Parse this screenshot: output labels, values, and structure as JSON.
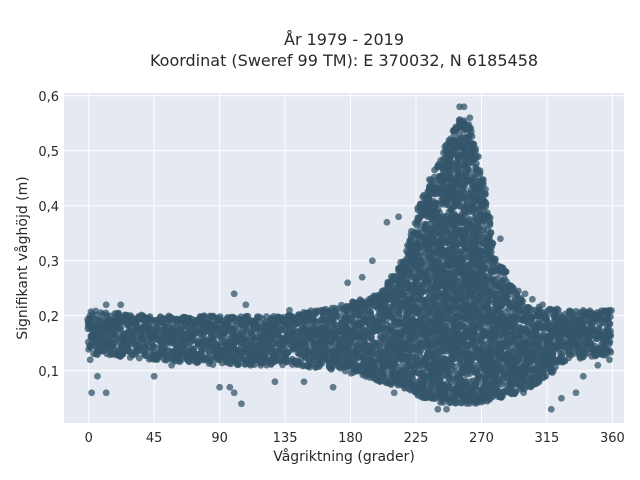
{
  "title_line1": "År 1979 - 2019",
  "title_line2": "Koordinat (Sweref 99 TM): E 370032, N 6185458",
  "chart_data": {
    "type": "scatter",
    "xlabel": "Vågriktning (grader)",
    "ylabel": "Signifikant våghöjd (m)",
    "xlim": [
      -17,
      368
    ],
    "ylim": [
      0.005,
      0.605
    ],
    "x_ticks": [
      0,
      45,
      90,
      135,
      180,
      225,
      270,
      315,
      360
    ],
    "x_tick_labels": [
      "0",
      "45",
      "90",
      "135",
      "180",
      "225",
      "270",
      "315",
      "360"
    ],
    "y_ticks": [
      0.1,
      0.2,
      0.3,
      0.4,
      0.5,
      0.6
    ],
    "y_tick_labels": [
      "0,1",
      "0,2",
      "0,3",
      "0,4",
      "0,5",
      "0,6"
    ],
    "grid": true,
    "marker_color": "#34566b",
    "plot_bg": "#e5e9f1",
    "dense_band": [
      {
        "x": 0,
        "low": 0.13,
        "high": 0.21
      },
      {
        "x": 45,
        "low": 0.12,
        "high": 0.2
      },
      {
        "x": 90,
        "low": 0.11,
        "high": 0.2
      },
      {
        "x": 135,
        "low": 0.11,
        "high": 0.2
      },
      {
        "x": 175,
        "low": 0.1,
        "high": 0.22
      },
      {
        "x": 200,
        "low": 0.08,
        "high": 0.24
      },
      {
        "x": 215,
        "low": 0.07,
        "high": 0.3
      },
      {
        "x": 230,
        "low": 0.05,
        "high": 0.42
      },
      {
        "x": 245,
        "low": 0.04,
        "high": 0.51
      },
      {
        "x": 255,
        "low": 0.04,
        "high": 0.56
      },
      {
        "x": 262,
        "low": 0.04,
        "high": 0.55
      },
      {
        "x": 270,
        "low": 0.04,
        "high": 0.46
      },
      {
        "x": 280,
        "low": 0.05,
        "high": 0.31
      },
      {
        "x": 300,
        "low": 0.06,
        "high": 0.22
      },
      {
        "x": 330,
        "low": 0.12,
        "high": 0.21
      },
      {
        "x": 360,
        "low": 0.13,
        "high": 0.21
      }
    ],
    "outliers": [
      {
        "x": 1,
        "y": 0.12
      },
      {
        "x": 2,
        "y": 0.06
      },
      {
        "x": 6,
        "y": 0.09
      },
      {
        "x": 12,
        "y": 0.06
      },
      {
        "x": 12,
        "y": 0.22
      },
      {
        "x": 22,
        "y": 0.22
      },
      {
        "x": 45,
        "y": 0.09
      },
      {
        "x": 57,
        "y": 0.11
      },
      {
        "x": 90,
        "y": 0.07
      },
      {
        "x": 97,
        "y": 0.07
      },
      {
        "x": 100,
        "y": 0.06
      },
      {
        "x": 100,
        "y": 0.24
      },
      {
        "x": 105,
        "y": 0.04
      },
      {
        "x": 108,
        "y": 0.22
      },
      {
        "x": 128,
        "y": 0.08
      },
      {
        "x": 138,
        "y": 0.21
      },
      {
        "x": 148,
        "y": 0.08
      },
      {
        "x": 160,
        "y": 0.21
      },
      {
        "x": 168,
        "y": 0.07
      },
      {
        "x": 178,
        "y": 0.26
      },
      {
        "x": 188,
        "y": 0.27
      },
      {
        "x": 195,
        "y": 0.3
      },
      {
        "x": 205,
        "y": 0.37
      },
      {
        "x": 213,
        "y": 0.38
      },
      {
        "x": 210,
        "y": 0.06
      },
      {
        "x": 240,
        "y": 0.03
      },
      {
        "x": 246,
        "y": 0.03
      },
      {
        "x": 255,
        "y": 0.58
      },
      {
        "x": 258,
        "y": 0.58
      },
      {
        "x": 262,
        "y": 0.56
      },
      {
        "x": 275,
        "y": 0.38
      },
      {
        "x": 283,
        "y": 0.34
      },
      {
        "x": 287,
        "y": 0.28
      },
      {
        "x": 292,
        "y": 0.25
      },
      {
        "x": 300,
        "y": 0.24
      },
      {
        "x": 305,
        "y": 0.23
      },
      {
        "x": 312,
        "y": 0.22
      },
      {
        "x": 320,
        "y": 0.21
      },
      {
        "x": 318,
        "y": 0.03
      },
      {
        "x": 325,
        "y": 0.05
      },
      {
        "x": 335,
        "y": 0.06
      },
      {
        "x": 340,
        "y": 0.09
      },
      {
        "x": 350,
        "y": 0.11
      },
      {
        "x": 358,
        "y": 0.12
      },
      {
        "x": 358,
        "y": 0.21
      }
    ]
  }
}
